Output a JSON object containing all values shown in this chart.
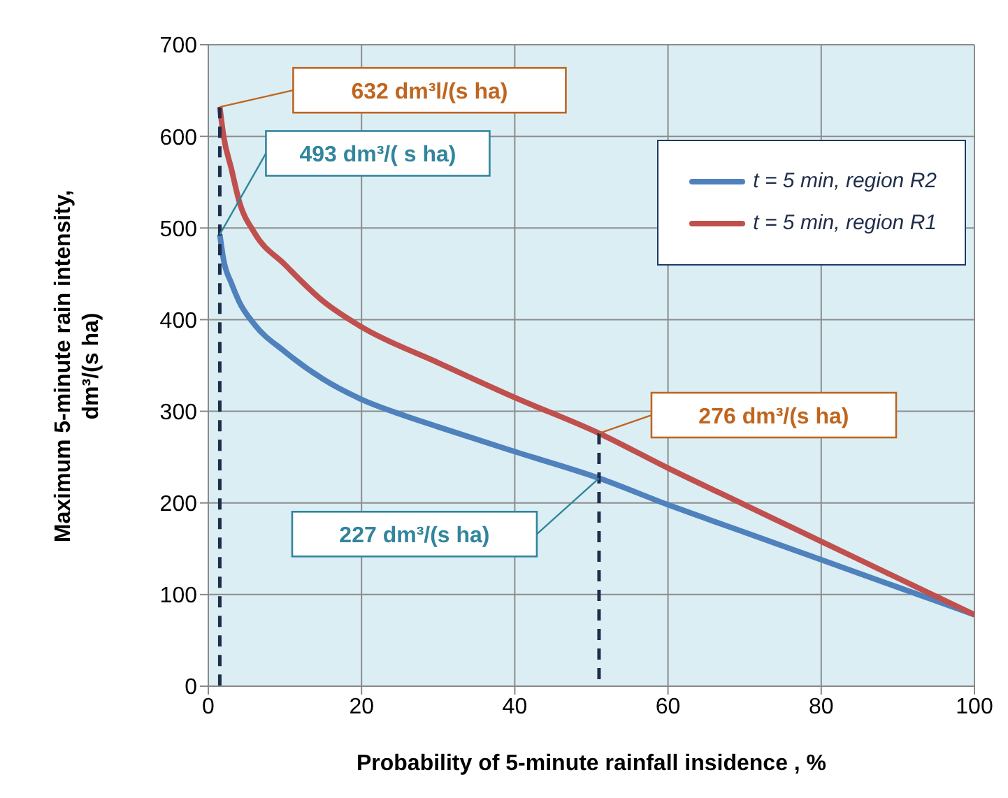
{
  "chart_data": {
    "type": "line",
    "xlabel": "Probability of 5-minute rainfall insidence , %",
    "ylabel": "Maximum 5-minute rain intensity, dm³/(s ha)",
    "xlim": [
      0,
      100
    ],
    "xticks": [
      0,
      20,
      40,
      60,
      80,
      100
    ],
    "ylim": [
      0,
      700
    ],
    "yticks": [
      0,
      100,
      200,
      300,
      400,
      500,
      600,
      700
    ],
    "grid": true,
    "legend": "top right",
    "marker": "none",
    "series": [
      {
        "name": "t = 5 min, region R2",
        "color": "#4f81bd",
        "x": [
          1.5,
          2,
          3,
          4,
          6,
          10,
          15,
          20,
          25,
          30,
          40,
          51,
          60,
          70,
          80,
          90,
          100
        ],
        "values": [
          493,
          465,
          440,
          420,
          395,
          365,
          335,
          313,
          297,
          283,
          256,
          227,
          198,
          168,
          138,
          108,
          78
        ]
      },
      {
        "name": "t = 5 min, region R1",
        "color": "#c0504d",
        "x": [
          1.5,
          2,
          3,
          4,
          6,
          10,
          15,
          20,
          30,
          40,
          51,
          60,
          70,
          80,
          90,
          100
        ],
        "values": [
          632,
          600,
          565,
          530,
          495,
          460,
          420,
          392,
          353,
          315,
          276,
          238,
          198,
          158,
          118,
          78
        ]
      },
      {
        "type": "line",
        "color": "#1f2d4a",
        "line_style": "dashed",
        "x": [
          1.5,
          1.5
        ],
        "values": [
          632,
          0
        ]
      },
      {
        "type": "line",
        "color": "#1f2d4a",
        "line_style": "dashed",
        "x": [
          51,
          51
        ],
        "values": [
          276,
          0
        ]
      }
    ],
    "annotations": [
      "632 dm³l/(s ha)",
      "493 dm³/( s ha)",
      "276 dm³/(s ha)",
      "227 dm³/(s ha)"
    ]
  }
}
